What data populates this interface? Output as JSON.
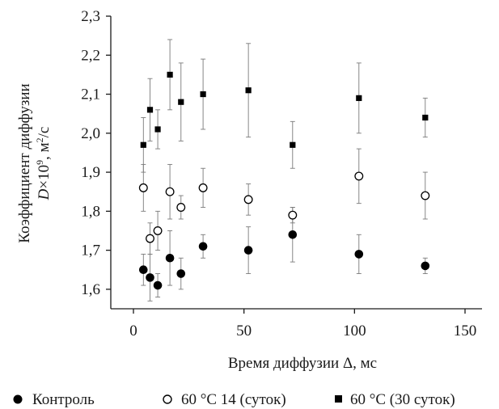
{
  "chart_data": {
    "type": "scatter",
    "title": "",
    "xlabel": "Время диффузии Δ, мс",
    "ylabel_line1": "Коэффициент диффузии",
    "ylabel_line2_var": "D",
    "ylabel_line2_rest": "×10",
    "ylabel_line2_exp": "9",
    "ylabel_line2_unit": ", м",
    "ylabel_line2_unit_exp": "2",
    "ylabel_line2_unit_tail": "/с",
    "xlim": [
      0,
      150
    ],
    "ylim": [
      1.55,
      2.3
    ],
    "x_ticks": [
      0,
      50,
      100,
      150
    ],
    "x_tick_labels": [
      "0",
      "50",
      "100",
      "150"
    ],
    "y_ticks": [
      1.6,
      1.7,
      1.8,
      1.9,
      2.0,
      2.1,
      2.2,
      2.3
    ],
    "y_tick_labels": [
      "1,6",
      "1,7",
      "1,8",
      "1,9",
      "2,0",
      "2,1",
      "2,2",
      "2,3"
    ],
    "legend_position": "bottom",
    "grid": false,
    "series": [
      {
        "name": "Контроль",
        "marker": "filled-circle",
        "color": "#000000",
        "points": [
          {
            "x": 4.5,
            "y": 1.65,
            "err": 0.04
          },
          {
            "x": 7.5,
            "y": 1.63,
            "err": 0.06
          },
          {
            "x": 11,
            "y": 1.61,
            "err": 0.03
          },
          {
            "x": 16.5,
            "y": 1.68,
            "err": 0.07
          },
          {
            "x": 21.5,
            "y": 1.64,
            "err": 0.04
          },
          {
            "x": 31.5,
            "y": 1.71,
            "err": 0.03
          },
          {
            "x": 52,
            "y": 1.7,
            "err": 0.06
          },
          {
            "x": 72,
            "y": 1.74,
            "err": 0.07
          },
          {
            "x": 102,
            "y": 1.69,
            "err": 0.05
          },
          {
            "x": 132,
            "y": 1.66,
            "err": 0.02
          }
        ]
      },
      {
        "name": "60 °C 14 (суток)",
        "marker": "open-circle",
        "color": "#000000",
        "points": [
          {
            "x": 4.5,
            "y": 1.86,
            "err": 0.06
          },
          {
            "x": 7.5,
            "y": 1.73,
            "err": 0.04
          },
          {
            "x": 11,
            "y": 1.75,
            "err": 0.05
          },
          {
            "x": 16.5,
            "y": 1.85,
            "err": 0.07
          },
          {
            "x": 21.5,
            "y": 1.81,
            "err": 0.03
          },
          {
            "x": 31.5,
            "y": 1.86,
            "err": 0.05
          },
          {
            "x": 52,
            "y": 1.83,
            "err": 0.04
          },
          {
            "x": 72,
            "y": 1.79,
            "err": 0.02
          },
          {
            "x": 102,
            "y": 1.89,
            "err": 0.07
          },
          {
            "x": 132,
            "y": 1.84,
            "err": 0.06
          }
        ]
      },
      {
        "name": "60 °C (30 суток)",
        "marker": "filled-square",
        "color": "#000000",
        "points": [
          {
            "x": 4.5,
            "y": 1.97,
            "err": 0.07
          },
          {
            "x": 7.5,
            "y": 2.06,
            "err": 0.08
          },
          {
            "x": 11,
            "y": 2.01,
            "err": 0.05
          },
          {
            "x": 16.5,
            "y": 2.15,
            "err": 0.09
          },
          {
            "x": 21.5,
            "y": 2.08,
            "err": 0.1
          },
          {
            "x": 31.5,
            "y": 2.1,
            "err": 0.09
          },
          {
            "x": 52,
            "y": 2.11,
            "err": 0.12
          },
          {
            "x": 72,
            "y": 1.97,
            "err": 0.06
          },
          {
            "x": 102,
            "y": 2.09,
            "err": 0.09
          },
          {
            "x": 132,
            "y": 2.04,
            "err": 0.05
          }
        ]
      }
    ]
  }
}
